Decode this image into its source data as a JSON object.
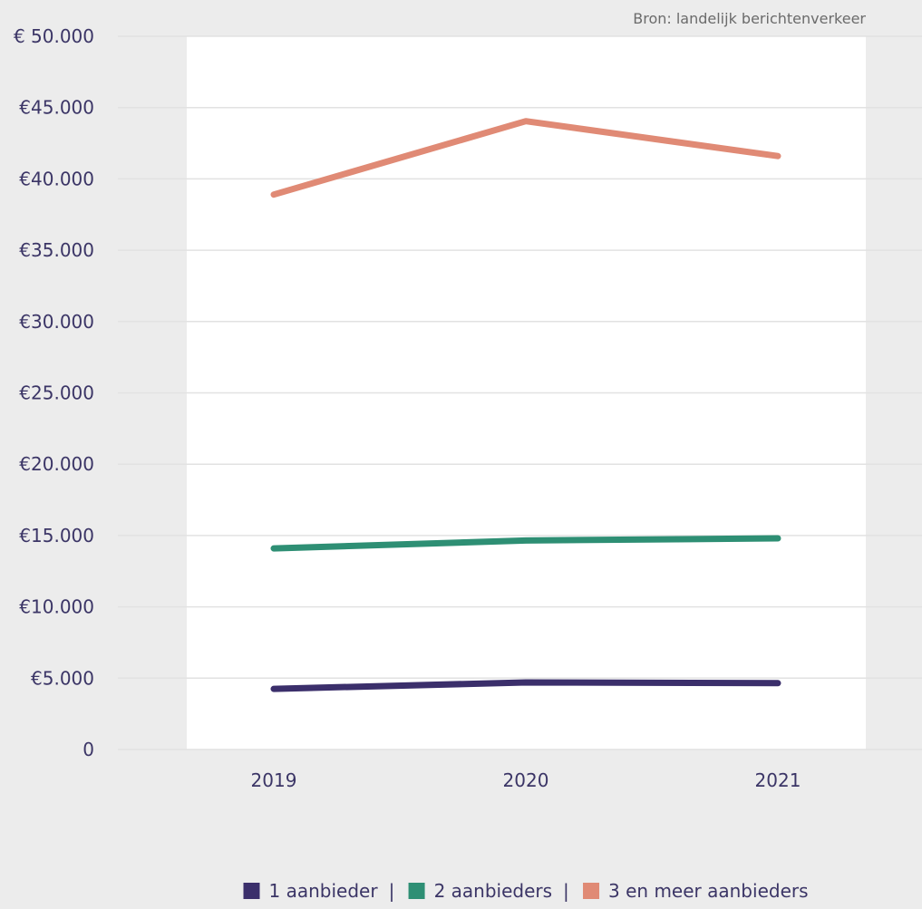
{
  "source_note": "Bron: landelijk berichtenverkeer",
  "chart_data": {
    "type": "line",
    "categories": [
      "2019",
      "2020",
      "2021"
    ],
    "ylim": [
      0,
      50000
    ],
    "y_ticks": [
      0,
      5000,
      10000,
      15000,
      20000,
      25000,
      30000,
      35000,
      40000,
      45000,
      50000
    ],
    "y_tick_labels": [
      "0",
      "€5.000",
      "€10.000",
      "€15.000",
      "€20.000",
      "€25.000",
      "€30.000",
      "€35.000",
      "€40.000",
      "€45.000",
      "€ 50.000"
    ],
    "grid": true,
    "legend_position": "bottom",
    "series": [
      {
        "name": "1 aanbieder",
        "color": "#3b2f6b",
        "values": [
          4250,
          4700,
          4650
        ]
      },
      {
        "name": "2 aanbieders",
        "color": "#2e8f74",
        "values": [
          14100,
          14650,
          14800
        ]
      },
      {
        "name": "3 en meer aanbieders",
        "color": "#e08a75",
        "values": [
          38900,
          44050,
          41600
        ]
      }
    ]
  },
  "legend": {
    "separator": "|"
  }
}
